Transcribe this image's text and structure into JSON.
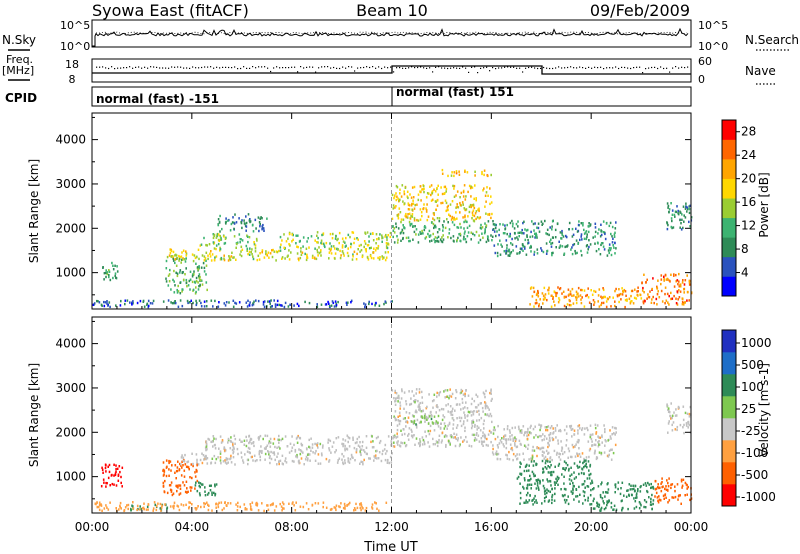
{
  "header": {
    "station": "Syowa East (fitACF)",
    "beam": "Beam 10",
    "date": "09/Feb/2009"
  },
  "top_panels": {
    "nsky_label": "N.Sky",
    "nsearch_label": "N.Search",
    "nsky_ticks": [
      "10^5",
      "10^0"
    ],
    "nsearch_ticks": [
      "10^5",
      "10^0"
    ],
    "freq_label_1": "Freq.",
    "freq_label_2": "[MHz]",
    "freq_ticks": [
      "18",
      "8"
    ],
    "nave_label": "Nave",
    "nave_ticks": [
      "60",
      "0"
    ],
    "cpid_label": "CPID",
    "cpid_segments": [
      {
        "label": "normal (fast) -151",
        "start_hour": 0,
        "end_hour": 12
      },
      {
        "label": "normal (fast) 151",
        "start_hour": 12,
        "end_hour": 24
      }
    ]
  },
  "chart_data": [
    {
      "type": "heatmap",
      "quantity": "Power",
      "ylabel": "Slant Range [km]",
      "ylim": [
        180,
        4600
      ],
      "yticks": [
        "1000",
        "2000",
        "3000",
        "4000"
      ],
      "xlim": [
        0,
        24
      ],
      "colorbar": {
        "label": "Power [dB]",
        "ticks": [
          "4",
          "8",
          "12",
          "16",
          "20",
          "24",
          "28"
        ],
        "range": [
          0,
          30
        ]
      },
      "regions": [
        {
          "t": [
            0.4,
            1.0
          ],
          "r": [
            850,
            1250
          ],
          "v": 10
        },
        {
          "t": [
            2.9,
            4.6
          ],
          "r": [
            550,
            1400
          ],
          "v": 12
        },
        {
          "t": [
            3.0,
            12.0
          ],
          "r": [
            1300,
            1550
          ],
          "v": 17
        },
        {
          "t": [
            4.2,
            6.6
          ],
          "r": [
            1550,
            1900
          ],
          "v": 14
        },
        {
          "t": [
            5.0,
            7.0
          ],
          "r": [
            1950,
            2350
          ],
          "v": 8
        },
        {
          "t": [
            7.5,
            12.0
          ],
          "r": [
            1550,
            1950
          ],
          "v": 15
        },
        {
          "t": [
            0.0,
            12.0
          ],
          "r": [
            250,
            400
          ],
          "v": 6
        },
        {
          "t": [
            12.0,
            16.0
          ],
          "r": [
            2200,
            3000
          ],
          "v": 19
        },
        {
          "t": [
            12.0,
            16.0
          ],
          "r": [
            1700,
            2200
          ],
          "v": 11
        },
        {
          "t": [
            14.0,
            16.0
          ],
          "r": [
            3200,
            3350
          ],
          "v": 20
        },
        {
          "t": [
            16.0,
            21.0
          ],
          "r": [
            1400,
            2200
          ],
          "v": 9
        },
        {
          "t": [
            17.5,
            22.0
          ],
          "r": [
            250,
            700
          ],
          "v": 22
        },
        {
          "t": [
            22.0,
            24.0
          ],
          "r": [
            300,
            1000
          ],
          "v": 24
        },
        {
          "t": [
            23.0,
            24.0
          ],
          "r": [
            2000,
            2600
          ],
          "v": 8
        }
      ]
    },
    {
      "type": "heatmap",
      "quantity": "Velocity",
      "ylabel": "Slant Range [km]",
      "xlabel": "Time UT",
      "ylim": [
        180,
        4600
      ],
      "yticks": [
        "1000",
        "2000",
        "3000",
        "4000"
      ],
      "xlim": [
        0,
        24
      ],
      "xticks": [
        "00:00",
        "04:00",
        "08:00",
        "12:00",
        "16:00",
        "20:00",
        "00:00"
      ],
      "colorbar": {
        "label": "Velocity [m s-1]",
        "ticks": [
          "1000",
          "500",
          "100",
          "25",
          "-25",
          "-100",
          "-500",
          "-1000"
        ],
        "range": [
          -1000,
          1000
        ]
      },
      "regions": [
        {
          "t": [
            0.3,
            1.2
          ],
          "r": [
            800,
            1300
          ],
          "v": -600
        },
        {
          "t": [
            2.8,
            4.2
          ],
          "r": [
            600,
            1400
          ],
          "v": -300
        },
        {
          "t": [
            4.0,
            5.0
          ],
          "r": [
            600,
            900
          ],
          "v": 150
        },
        {
          "t": [
            1.5,
            3.0
          ],
          "r": [
            250,
            400
          ],
          "v": 120
        },
        {
          "t": [
            3.5,
            12.0
          ],
          "r": [
            1300,
            1550
          ],
          "v": 0
        },
        {
          "t": [
            4.5,
            12.0
          ],
          "r": [
            1550,
            1950
          ],
          "v": 0
        },
        {
          "t": [
            0.0,
            12.0
          ],
          "r": [
            250,
            450
          ],
          "v": -60
        },
        {
          "t": [
            12.0,
            16.0
          ],
          "r": [
            1700,
            3000
          ],
          "v": 0
        },
        {
          "t": [
            12.5,
            14.0
          ],
          "r": [
            2200,
            2400
          ],
          "v": 80
        },
        {
          "t": [
            16.0,
            21.0
          ],
          "r": [
            1400,
            2200
          ],
          "v": 0
        },
        {
          "t": [
            17.0,
            20.0
          ],
          "r": [
            400,
            1400
          ],
          "v": 300
        },
        {
          "t": [
            20.0,
            22.5
          ],
          "r": [
            250,
            900
          ],
          "v": 150
        },
        {
          "t": [
            22.5,
            24.0
          ],
          "r": [
            400,
            1000
          ],
          "v": -200
        },
        {
          "t": [
            23.0,
            24.0
          ],
          "r": [
            2000,
            2700
          ],
          "v": 0
        }
      ]
    }
  ]
}
